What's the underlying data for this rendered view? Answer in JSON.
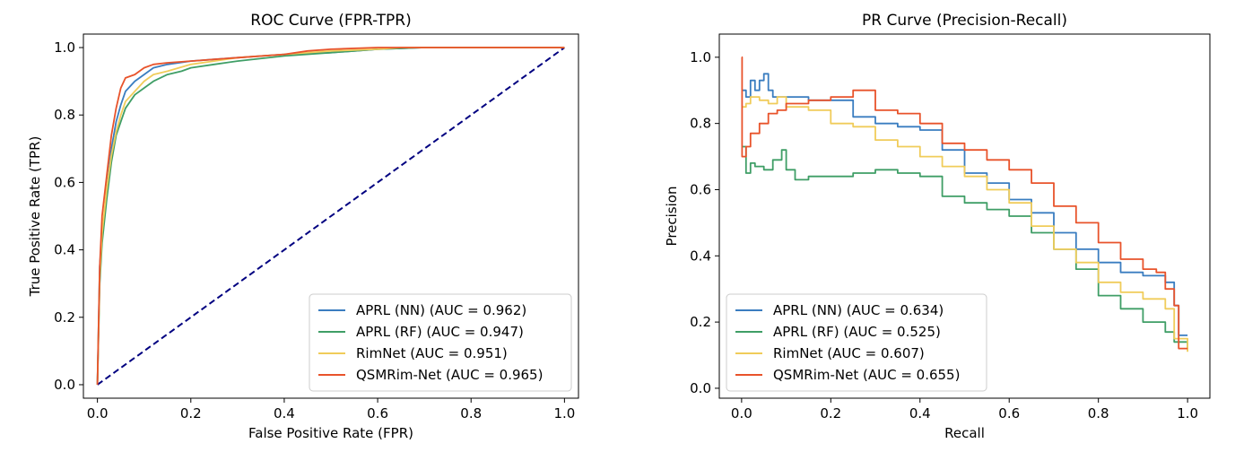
{
  "chart_data": [
    {
      "id": "roc",
      "type": "line",
      "title": "ROC Curve (FPR-TPR)",
      "xlabel": "False Positive Rate (FPR)",
      "ylabel": "True Positive Rate (TPR)",
      "xlim": [
        -0.03,
        1.03
      ],
      "ylim": [
        -0.04,
        1.04
      ],
      "xticks": [
        0.0,
        0.2,
        0.4,
        0.6,
        0.8,
        1.0
      ],
      "yticks": [
        0.0,
        0.2,
        0.4,
        0.6,
        0.8,
        1.0
      ],
      "tick_labels": [
        "0.0",
        "0.2",
        "0.4",
        "0.6",
        "0.8",
        "1.0"
      ],
      "legend_position": "lower-right",
      "reference_line": {
        "x": [
          0,
          1
        ],
        "y": [
          0,
          1
        ],
        "color": "#000080",
        "style": "dashed"
      },
      "series": [
        {
          "name": "APRL (NN) (AUC = 0.962)",
          "color": "#3a7dc0",
          "x": [
            0,
            0.005,
            0.01,
            0.015,
            0.02,
            0.03,
            0.04,
            0.05,
            0.06,
            0.08,
            0.1,
            0.12,
            0.15,
            0.2,
            0.25,
            0.3,
            0.4,
            0.5,
            0.55,
            0.6,
            0.7,
            0.8,
            0.9,
            1.0
          ],
          "y": [
            0,
            0.35,
            0.45,
            0.5,
            0.58,
            0.7,
            0.78,
            0.83,
            0.87,
            0.9,
            0.92,
            0.94,
            0.95,
            0.96,
            0.965,
            0.97,
            0.98,
            0.985,
            0.99,
            0.995,
            1.0,
            1.0,
            1.0,
            1.0
          ]
        },
        {
          "name": "APRL (RF) (AUC = 0.947)",
          "color": "#3f9e66",
          "x": [
            0,
            0.005,
            0.01,
            0.02,
            0.03,
            0.04,
            0.05,
            0.06,
            0.08,
            0.1,
            0.12,
            0.15,
            0.18,
            0.2,
            0.25,
            0.3,
            0.4,
            0.5,
            0.55,
            0.6,
            0.7,
            0.8,
            1.0
          ],
          "y": [
            0,
            0.3,
            0.42,
            0.55,
            0.66,
            0.74,
            0.78,
            0.82,
            0.86,
            0.88,
            0.9,
            0.92,
            0.93,
            0.94,
            0.95,
            0.96,
            0.975,
            0.985,
            0.99,
            0.995,
            1.0,
            1.0,
            1.0
          ]
        },
        {
          "name": "RimNet (AUC = 0.951)",
          "color": "#f0cc5a",
          "x": [
            0,
            0.005,
            0.01,
            0.02,
            0.03,
            0.04,
            0.05,
            0.06,
            0.08,
            0.1,
            0.12,
            0.15,
            0.2,
            0.25,
            0.3,
            0.4,
            0.5,
            0.6,
            0.65,
            0.7,
            1.0
          ],
          "y": [
            0,
            0.32,
            0.45,
            0.58,
            0.68,
            0.75,
            0.8,
            0.84,
            0.87,
            0.9,
            0.92,
            0.93,
            0.95,
            0.96,
            0.97,
            0.98,
            0.99,
            0.995,
            1.0,
            1.0,
            1.0
          ]
        },
        {
          "name": "QSMRim-Net (AUC = 0.965)",
          "color": "#e8532b",
          "x": [
            0,
            0.005,
            0.01,
            0.02,
            0.03,
            0.04,
            0.05,
            0.06,
            0.08,
            0.1,
            0.12,
            0.15,
            0.2,
            0.25,
            0.3,
            0.4,
            0.45,
            0.5,
            0.6,
            0.7,
            1.0
          ],
          "y": [
            0,
            0.35,
            0.5,
            0.62,
            0.74,
            0.82,
            0.88,
            0.91,
            0.92,
            0.94,
            0.95,
            0.955,
            0.96,
            0.965,
            0.97,
            0.98,
            0.99,
            0.995,
            1.0,
            1.0,
            1.0
          ]
        }
      ]
    },
    {
      "id": "pr",
      "type": "line",
      "title": "PR Curve (Precision-Recall)",
      "xlabel": "Recall",
      "ylabel": "Precision",
      "xlim": [
        -0.05,
        1.05
      ],
      "ylim": [
        -0.03,
        1.07
      ],
      "xticks": [
        0.0,
        0.2,
        0.4,
        0.6,
        0.8,
        1.0
      ],
      "yticks": [
        0.0,
        0.2,
        0.4,
        0.6,
        0.8,
        1.0
      ],
      "tick_labels": [
        "0.0",
        "0.2",
        "0.4",
        "0.6",
        "0.8",
        "1.0"
      ],
      "legend_position": "lower-left",
      "series": [
        {
          "name": "APRL (NN) (AUC = 0.634)",
          "color": "#3a7dc0",
          "x": [
            0,
            0.005,
            0.01,
            0.02,
            0.03,
            0.04,
            0.05,
            0.06,
            0.07,
            0.1,
            0.15,
            0.2,
            0.25,
            0.3,
            0.35,
            0.4,
            0.45,
            0.5,
            0.55,
            0.6,
            0.65,
            0.7,
            0.75,
            0.8,
            0.85,
            0.9,
            0.95,
            0.97,
            0.98,
            1.0
          ],
          "y": [
            0.9,
            0.9,
            0.88,
            0.93,
            0.9,
            0.93,
            0.95,
            0.9,
            0.88,
            0.88,
            0.87,
            0.87,
            0.82,
            0.8,
            0.79,
            0.78,
            0.72,
            0.65,
            0.62,
            0.57,
            0.53,
            0.47,
            0.42,
            0.38,
            0.35,
            0.34,
            0.32,
            0.25,
            0.16,
            0.16
          ]
        },
        {
          "name": "APRL (RF) (AUC = 0.525)",
          "color": "#3f9e66",
          "x": [
            0,
            0.005,
            0.01,
            0.02,
            0.03,
            0.05,
            0.07,
            0.09,
            0.1,
            0.12,
            0.15,
            0.2,
            0.25,
            0.3,
            0.35,
            0.4,
            0.45,
            0.5,
            0.55,
            0.6,
            0.65,
            0.7,
            0.75,
            0.8,
            0.85,
            0.9,
            0.95,
            0.97,
            1.0
          ],
          "y": [
            0.73,
            0.73,
            0.65,
            0.68,
            0.67,
            0.66,
            0.69,
            0.72,
            0.66,
            0.63,
            0.64,
            0.64,
            0.65,
            0.66,
            0.65,
            0.64,
            0.58,
            0.56,
            0.54,
            0.52,
            0.47,
            0.42,
            0.36,
            0.28,
            0.24,
            0.2,
            0.17,
            0.14,
            0.12
          ]
        },
        {
          "name": "RimNet (AUC = 0.607)",
          "color": "#f0cc5a",
          "x": [
            0,
            0.005,
            0.01,
            0.02,
            0.04,
            0.06,
            0.08,
            0.1,
            0.15,
            0.2,
            0.25,
            0.3,
            0.35,
            0.4,
            0.45,
            0.5,
            0.55,
            0.6,
            0.65,
            0.7,
            0.75,
            0.8,
            0.85,
            0.9,
            0.95,
            0.97,
            1.0
          ],
          "y": [
            0.85,
            0.85,
            0.86,
            0.88,
            0.87,
            0.86,
            0.88,
            0.85,
            0.84,
            0.8,
            0.79,
            0.75,
            0.73,
            0.7,
            0.67,
            0.64,
            0.6,
            0.56,
            0.49,
            0.42,
            0.38,
            0.32,
            0.29,
            0.27,
            0.24,
            0.15,
            0.11
          ]
        },
        {
          "name": "QSMRim-Net (AUC = 0.655)",
          "color": "#e8532b",
          "x": [
            0,
            0.001,
            0.005,
            0.01,
            0.02,
            0.04,
            0.06,
            0.08,
            0.1,
            0.15,
            0.2,
            0.25,
            0.3,
            0.35,
            0.4,
            0.45,
            0.5,
            0.55,
            0.6,
            0.65,
            0.7,
            0.75,
            0.8,
            0.85,
            0.9,
            0.93,
            0.95,
            0.97,
            0.98,
            1.0
          ],
          "y": [
            1.0,
            0.7,
            0.7,
            0.73,
            0.77,
            0.8,
            0.83,
            0.84,
            0.86,
            0.87,
            0.88,
            0.9,
            0.84,
            0.83,
            0.8,
            0.74,
            0.72,
            0.69,
            0.66,
            0.62,
            0.55,
            0.5,
            0.44,
            0.39,
            0.36,
            0.35,
            0.3,
            0.25,
            0.12,
            0.12
          ]
        }
      ]
    }
  ]
}
